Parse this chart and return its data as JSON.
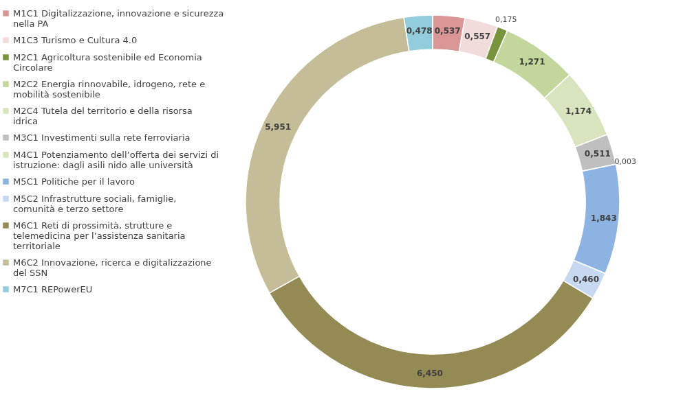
{
  "chart_data": {
    "type": "donut",
    "legend": "left",
    "categories": [
      "M1C1 Digitalizzazione, innovazione e sicurezza nella PA",
      "M1C3 Turismo e Cultura 4.0",
      "M2C1 Agricoltura sostenibile ed Economia Circolare",
      "M2C2 Energia rinnovabile, idrogeno, rete e mobilità sostenibile",
      "M2C4 Tutela del territorio e della risorsa idrica",
      "M3C1 Investimenti sulla rete ferroviaria",
      "M4C1 Potenziamento dell’offerta dei servizi di istruzione: dagli asili nido alle università",
      "M5C1 Politiche per il lavoro",
      "M5C2 Infrastrutture sociali, famiglie, comunità e terzo settore",
      "M6C1 Reti di prossimità, strutture e telemedicina per l’assistenza sanitaria territoriale",
      "M6C2 Innovazione, ricerca e digitalizzazione del SSN",
      "M7C1 REPowerEU"
    ],
    "values": [
      0.537,
      0.557,
      0.175,
      1.271,
      1.174,
      0.511,
      0.003,
      1.843,
      0.46,
      6.45,
      5.951,
      0.478
    ],
    "value_labels": [
      "0,537",
      "0,557",
      "0,175",
      "1,271",
      "1,174",
      "0,511",
      "0,003",
      "1,843",
      "0,460",
      "6,450",
      "5,951",
      "0,478"
    ],
    "colors": [
      "#d99694",
      "#f2dcdb",
      "#77933c",
      "#c3d69b",
      "#d7e4bd",
      "#bfbfbf",
      "#d7e4bd",
      "#8db3e2",
      "#c6d9f1",
      "#948a54",
      "#c4bd97",
      "#93cddd"
    ]
  }
}
